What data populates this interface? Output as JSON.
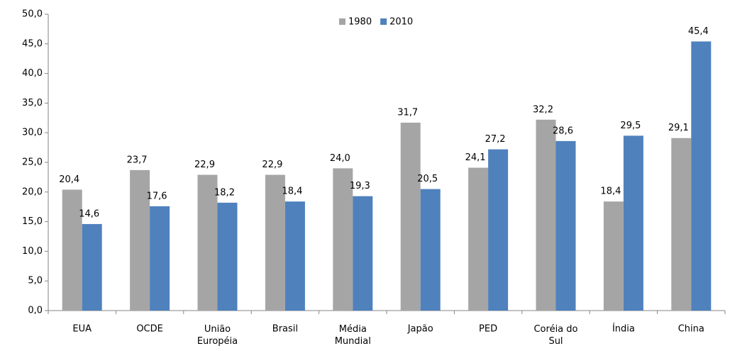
{
  "chart_data": {
    "type": "bar",
    "categories": [
      "EUA",
      "OCDE",
      "União\nEuropéia",
      "Brasil",
      "Média\nMundial",
      "Japão",
      "PED",
      "Coréia do\nSul",
      "Índia",
      "China"
    ],
    "series": [
      {
        "name": "1980",
        "color": "#a5a5a5",
        "values": [
          20.4,
          23.7,
          22.9,
          22.9,
          24.0,
          31.7,
          24.1,
          32.2,
          18.4,
          29.1
        ],
        "value_labels": [
          "20,4",
          "23,7",
          "22,9",
          "22,9",
          "24,0",
          "31,7",
          "24,1",
          "32,2",
          "18,4",
          "29,1"
        ]
      },
      {
        "name": "2010",
        "color": "#4f81bd",
        "values": [
          14.6,
          17.6,
          18.2,
          18.4,
          19.3,
          20.5,
          27.2,
          28.6,
          29.5,
          45.4
        ],
        "value_labels": [
          "14,6",
          "17,6",
          "18,2",
          "18,4",
          "19,3",
          "20,5",
          "27,2",
          "28,6",
          "29,5",
          "45,4"
        ]
      }
    ],
    "ylim": [
      0,
      50
    ],
    "yticks": [
      {
        "value": 0,
        "label": "0,0"
      },
      {
        "value": 5,
        "label": "5,0"
      },
      {
        "value": 10,
        "label": "10,0"
      },
      {
        "value": 15,
        "label": "15,0"
      },
      {
        "value": 20,
        "label": "20,0"
      },
      {
        "value": 25,
        "label": "25,0"
      },
      {
        "value": 30,
        "label": "30,0"
      },
      {
        "value": 35,
        "label": "35,0"
      },
      {
        "value": 40,
        "label": "40,0"
      },
      {
        "value": 45,
        "label": "45,0"
      },
      {
        "value": 50,
        "label": "50,0"
      }
    ],
    "grid": false,
    "legend": "top"
  }
}
